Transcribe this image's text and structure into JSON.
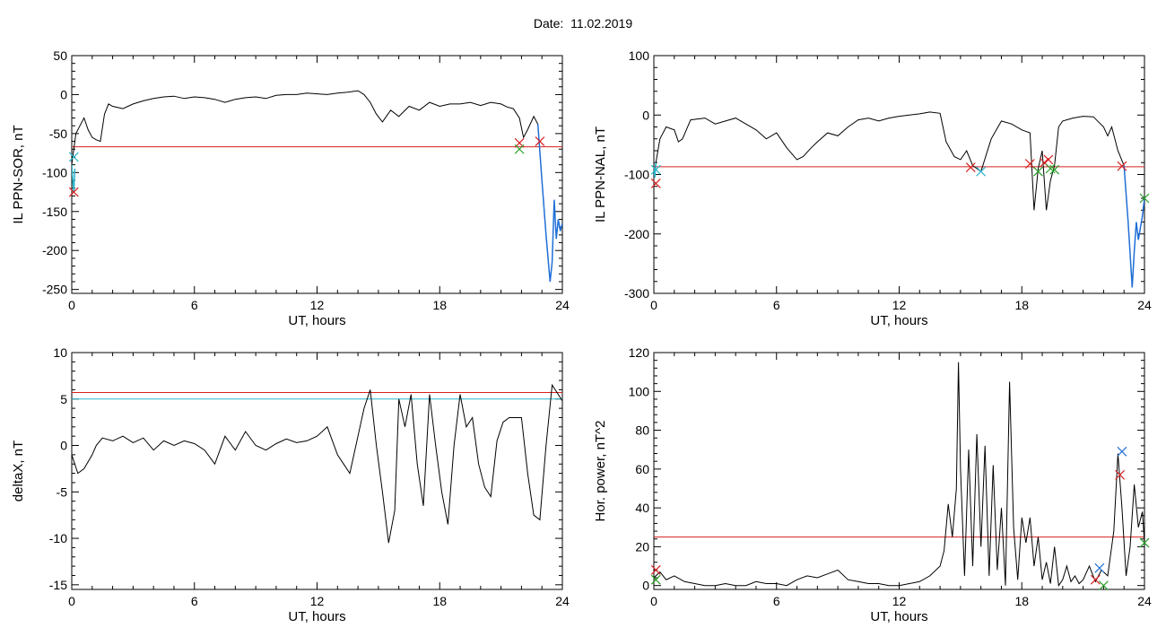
{
  "page": {
    "title": "Date:  11.02.2019"
  },
  "chart_data": [
    {
      "type": "line",
      "xlabel": "UT, hours",
      "ylabel": "IL PPN-SOR, nT",
      "xlim": [
        0,
        24
      ],
      "ylim": [
        -255,
        50
      ],
      "xticks": [
        0,
        6,
        12,
        18,
        24
      ],
      "yticks": [
        -250,
        -200,
        -150,
        -100,
        -50,
        0,
        50
      ],
      "series": [
        {
          "color": "#000000",
          "x": [
            0,
            0.2,
            0.4,
            0.6,
            0.8,
            1.0,
            1.2,
            1.4,
            1.6,
            1.8,
            2.0,
            2.5,
            3,
            3.5,
            4,
            4.5,
            5,
            5.5,
            6,
            6.5,
            7,
            7.5,
            8,
            8.5,
            9,
            9.5,
            10,
            10.5,
            11,
            11.5,
            12,
            12.5,
            13,
            13.5,
            14,
            14.3,
            14.6,
            14.9,
            15.2,
            15.6,
            16,
            16.5,
            17,
            17.5,
            18,
            18.5,
            19,
            19.5,
            20,
            20.5,
            21,
            21.3,
            21.6,
            21.9,
            22.1,
            22.3,
            22.6,
            22.8
          ],
          "y": [
            -90,
            -50,
            -40,
            -30,
            -45,
            -55,
            -58,
            -60,
            -25,
            -12,
            -15,
            -18,
            -12,
            -8,
            -5,
            -3,
            -2,
            -5,
            -3,
            -4,
            -6,
            -10,
            -6,
            -4,
            -3,
            -5,
            -1,
            0,
            0,
            2,
            1,
            0,
            2,
            3,
            5,
            0,
            -10,
            -25,
            -35,
            -20,
            -28,
            -15,
            -20,
            -10,
            -15,
            -12,
            -12,
            -10,
            -14,
            -10,
            -12,
            -16,
            -18,
            -30,
            -55,
            -45,
            -28,
            -38
          ]
        },
        {
          "color": "#1f6fd6",
          "x": [
            22.8,
            23.0,
            23.2,
            23.4,
            23.5,
            23.6,
            23.7,
            23.8,
            23.9,
            24.0
          ],
          "y": [
            -38,
            -110,
            -180,
            -240,
            -215,
            -135,
            -185,
            -160,
            -175,
            -165
          ]
        },
        {
          "color": "#2ab5c9",
          "x": [
            0,
            0.05,
            0.1,
            0.15
          ],
          "y": [
            -90,
            -110,
            -125,
            -95
          ]
        }
      ],
      "thresholds": [
        {
          "color": "#d62020",
          "y": -67
        }
      ],
      "markers": [
        {
          "x": 0.1,
          "y": -125,
          "color": "#d62020"
        },
        {
          "x": 0.1,
          "y": -80,
          "color": "#2ab5c9"
        },
        {
          "x": 21.9,
          "y": -62,
          "color": "#d62020"
        },
        {
          "x": 21.9,
          "y": -70,
          "color": "#28a028"
        },
        {
          "x": 22.9,
          "y": -60,
          "color": "#d62020"
        }
      ]
    },
    {
      "type": "line",
      "xlabel": "UT, hours",
      "ylabel": "IL PPN-NAL, nT",
      "xlim": [
        0,
        24
      ],
      "ylim": [
        -300,
        100
      ],
      "xticks": [
        0,
        6,
        12,
        18,
        24
      ],
      "yticks": [
        -300,
        -200,
        -100,
        0,
        100
      ],
      "series": [
        {
          "color": "#000000",
          "x": [
            0,
            0.3,
            0.6,
            1.0,
            1.2,
            1.4,
            1.8,
            2.5,
            3,
            3.5,
            4,
            4.5,
            5,
            5.5,
            6,
            6.5,
            7,
            7.3,
            7.7,
            8,
            8.5,
            9,
            9.5,
            10,
            10.5,
            11,
            11.5,
            12,
            12.5,
            13,
            13.5,
            14,
            14.3,
            14.7,
            15.0,
            15.3,
            15.6,
            16.0,
            16.5,
            17,
            17.5,
            18,
            18.4,
            18.6,
            18.8,
            19.0,
            19.2,
            19.4,
            19.6,
            19.8,
            20.0,
            20.5,
            21,
            21.5,
            22,
            22.2,
            22.4,
            22.7,
            23.0
          ],
          "y": [
            -100,
            -40,
            -20,
            -25,
            -45,
            -40,
            -8,
            -5,
            -15,
            -10,
            -5,
            -15,
            -25,
            -40,
            -30,
            -55,
            -75,
            -70,
            -55,
            -45,
            -30,
            -35,
            -20,
            -8,
            -5,
            -10,
            -5,
            -2,
            0,
            2,
            5,
            3,
            -45,
            -70,
            -75,
            -60,
            -85,
            -95,
            -40,
            -10,
            -15,
            -25,
            -30,
            -160,
            -90,
            -60,
            -160,
            -110,
            -85,
            -20,
            -10,
            -5,
            -2,
            -3,
            -20,
            -35,
            -20,
            -60,
            -85
          ]
        },
        {
          "color": "#1f6fd6",
          "x": [
            23.0,
            23.2,
            23.4,
            23.5,
            23.6,
            23.7,
            23.8,
            23.9,
            24.0
          ],
          "y": [
            -85,
            -180,
            -290,
            -230,
            -180,
            -210,
            -190,
            -170,
            -140
          ]
        },
        {
          "color": "#2ab5c9",
          "x": [
            0,
            0.05,
            0.1
          ],
          "y": [
            -90,
            -105,
            -80
          ]
        }
      ],
      "thresholds": [
        {
          "color": "#d62020",
          "y": -87
        }
      ],
      "markers": [
        {
          "x": 0.1,
          "y": -115,
          "color": "#d62020"
        },
        {
          "x": 0.1,
          "y": -92,
          "color": "#2ab5c9"
        },
        {
          "x": 15.5,
          "y": -88,
          "color": "#d62020"
        },
        {
          "x": 16.0,
          "y": -95,
          "color": "#2ab5c9"
        },
        {
          "x": 18.4,
          "y": -82,
          "color": "#d62020"
        },
        {
          "x": 18.8,
          "y": -95,
          "color": "#28a028"
        },
        {
          "x": 19.1,
          "y": -80,
          "color": "#d62020"
        },
        {
          "x": 19.3,
          "y": -75,
          "color": "#d62020"
        },
        {
          "x": 19.4,
          "y": -90,
          "color": "#28a028"
        },
        {
          "x": 19.6,
          "y": -92,
          "color": "#28a028"
        },
        {
          "x": 22.9,
          "y": -86,
          "color": "#d62020"
        },
        {
          "x": 24.0,
          "y": -140,
          "color": "#28a028"
        }
      ]
    },
    {
      "type": "line",
      "xlabel": "UT, hours",
      "ylabel": "deltaX, nT",
      "xlim": [
        0,
        24
      ],
      "ylim": [
        -15.5,
        10
      ],
      "xticks": [
        0,
        6,
        12,
        18,
        24
      ],
      "yticks": [
        -15,
        -10,
        -5,
        0,
        5,
        10
      ],
      "series": [
        {
          "color": "#000000",
          "x": [
            0,
            0.3,
            0.6,
            1.0,
            1.2,
            1.5,
            2,
            2.5,
            3,
            3.5,
            4,
            4.5,
            5,
            5.5,
            6,
            6.5,
            7,
            7.5,
            8,
            8.5,
            9,
            9.5,
            10,
            10.5,
            11,
            11.5,
            12,
            12.5,
            13,
            13.3,
            13.6,
            14.0,
            14.3,
            14.6,
            14.9,
            15.2,
            15.5,
            15.8,
            16.0,
            16.3,
            16.6,
            16.9,
            17.2,
            17.5,
            17.8,
            18.1,
            18.4,
            18.7,
            19.0,
            19.3,
            19.6,
            19.9,
            20.2,
            20.5,
            20.8,
            21.1,
            21.4,
            21.7,
            22.0,
            22.3,
            22.6,
            22.9,
            23.2,
            23.5,
            23.8,
            24.0
          ],
          "y": [
            -1,
            -3,
            -2.5,
            -1,
            0,
            0.8,
            0.5,
            1.0,
            0.3,
            0.8,
            -0.5,
            0.5,
            0,
            0.5,
            0.2,
            -0.5,
            -2,
            1.0,
            -0.5,
            1.5,
            0,
            -0.5,
            0.2,
            0.7,
            0.3,
            0.5,
            1,
            2,
            -1,
            -2,
            -3,
            1.0,
            4.0,
            6.0,
            0,
            -5,
            -10.5,
            -7,
            5.0,
            2.0,
            5.5,
            -2,
            -6.5,
            5.5,
            0,
            -5,
            -8.5,
            0,
            5.5,
            2,
            3.0,
            -2,
            -4.5,
            -5.5,
            0.5,
            2.5,
            3.0,
            3.0,
            3.0,
            -3,
            -7.5,
            -8,
            0,
            6.5,
            5.5,
            4.8
          ]
        }
      ],
      "thresholds": [
        {
          "color": "#d62020",
          "y": 5.7
        },
        {
          "color": "#2ab5c9",
          "y": 5.0
        }
      ],
      "markers": []
    },
    {
      "type": "line",
      "xlabel": "UT, hours",
      "ylabel": "Hor. power, nT^2",
      "xlim": [
        0,
        24
      ],
      "ylim": [
        -2,
        120
      ],
      "xticks": [
        0,
        6,
        12,
        18,
        24
      ],
      "yticks": [
        0,
        20,
        40,
        60,
        80,
        100,
        120
      ],
      "series": [
        {
          "color": "#000000",
          "x": [
            0,
            0.3,
            0.6,
            1,
            1.5,
            2,
            2.5,
            3,
            3.5,
            4,
            4.5,
            5,
            5.5,
            6,
            6.5,
            7,
            7.5,
            8,
            8.5,
            9,
            9.5,
            10,
            10.5,
            11,
            11.5,
            12,
            12.5,
            13,
            13.5,
            14,
            14.2,
            14.4,
            14.6,
            14.8,
            14.9,
            15.0,
            15.2,
            15.4,
            15.6,
            15.8,
            16.0,
            16.2,
            16.4,
            16.6,
            16.8,
            17.0,
            17.2,
            17.4,
            17.6,
            17.8,
            18.0,
            18.2,
            18.4,
            18.6,
            18.8,
            19.0,
            19.2,
            19.4,
            19.6,
            19.8,
            20.0,
            20.2,
            20.4,
            20.6,
            20.8,
            21.0,
            21.3,
            21.6,
            21.9,
            22.2,
            22.5,
            22.7,
            22.9,
            23.1,
            23.3,
            23.5,
            23.7,
            23.9,
            24.0
          ],
          "y": [
            4,
            7,
            3,
            5,
            2,
            1,
            0,
            0,
            1,
            0,
            0,
            2,
            1,
            1,
            0,
            3,
            5,
            4,
            6,
            8,
            3,
            2,
            1,
            1,
            0,
            0,
            1,
            2,
            5,
            10,
            18,
            42,
            25,
            50,
            115,
            60,
            5,
            70,
            10,
            78,
            20,
            72,
            5,
            62,
            8,
            40,
            0,
            105,
            30,
            3,
            35,
            22,
            35,
            10,
            25,
            3,
            12,
            1,
            20,
            0,
            3,
            10,
            2,
            5,
            1,
            3,
            10,
            2,
            8,
            5,
            28,
            68,
            40,
            5,
            20,
            52,
            30,
            38,
            22
          ]
        }
      ],
      "thresholds": [
        {
          "color": "#d62020",
          "y": 25
        }
      ],
      "markers": [
        {
          "x": 0.1,
          "y": 8,
          "color": "#d62020"
        },
        {
          "x": 0.1,
          "y": 3,
          "color": "#28a028"
        },
        {
          "x": 21.6,
          "y": 3,
          "color": "#d62020"
        },
        {
          "x": 21.8,
          "y": 9,
          "color": "#1f6fd6"
        },
        {
          "x": 22.0,
          "y": 0,
          "color": "#28a028"
        },
        {
          "x": 22.8,
          "y": 57,
          "color": "#d62020"
        },
        {
          "x": 22.9,
          "y": 69,
          "color": "#1f6fd6"
        },
        {
          "x": 24.0,
          "y": 22,
          "color": "#28a028"
        }
      ]
    }
  ]
}
